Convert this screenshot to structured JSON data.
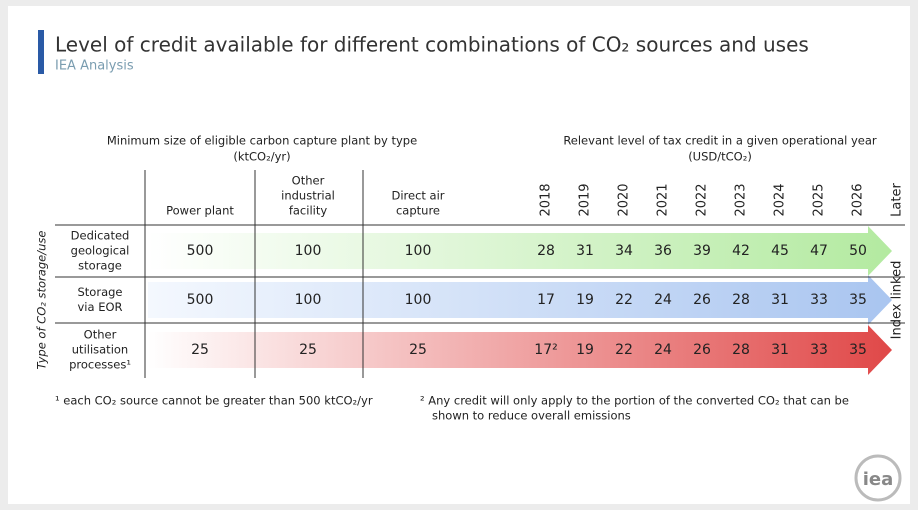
{
  "header": {
    "title": "Level of credit available for different combinations of CO₂ sources and uses",
    "subtitle": "IEA Analysis"
  },
  "table": {
    "size_header": "Minimum size of eligible carbon capture plant by type",
    "size_unit": "(ktCO₂/yr)",
    "credit_header": "Relevant level of tax credit in a given operational year",
    "credit_unit": "(USD/tCO₂)",
    "row_axis_label": "Type of CO₂ storage/use",
    "columns": [
      [
        "Power plant"
      ],
      [
        "Other",
        "industrial",
        "facility"
      ],
      [
        "Direct air",
        "capture"
      ]
    ],
    "years": [
      "2018",
      "2019",
      "2020",
      "2021",
      "2022",
      "2023",
      "2024",
      "2025",
      "2026",
      "Later"
    ],
    "later_note": "Index linked",
    "rows": [
      {
        "label": [
          "Dedicated",
          "geological",
          "storage"
        ],
        "sizes": [
          500,
          100,
          100
        ],
        "credits": [
          28,
          31,
          34,
          36,
          39,
          42,
          45,
          47,
          50
        ]
      },
      {
        "label": [
          "Storage",
          "via EOR"
        ],
        "sizes": [
          500,
          100,
          100
        ],
        "credits": [
          17,
          19,
          22,
          24,
          26,
          28,
          31,
          33,
          35
        ]
      },
      {
        "label": [
          "Other",
          "utilisation",
          "processes¹"
        ],
        "sizes": [
          25,
          25,
          25
        ],
        "credits": [
          "17²",
          19,
          22,
          24,
          26,
          28,
          31,
          33,
          35
        ]
      }
    ]
  },
  "footnotes": [
    [
      "¹ each CO₂ source cannot be greater than 500 ktCO₂/yr"
    ],
    [
      "² Any credit will only apply to the portion of the converted CO₂ that can be",
      "shown to reduce overall emissions"
    ]
  ],
  "logo": "iea"
}
